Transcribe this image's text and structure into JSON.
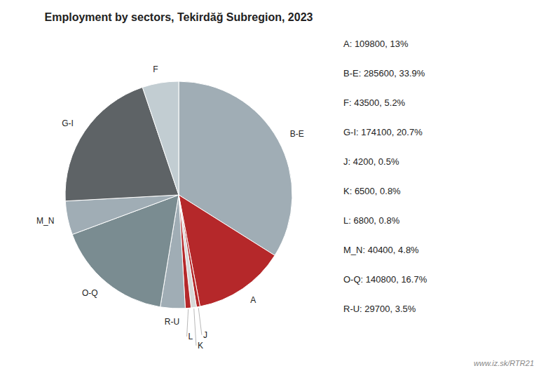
{
  "chart_data": {
    "type": "pie",
    "title": "Employment by sectors, Tekirdăğ Subregion, 2023",
    "categories": [
      "B-E",
      "A",
      "J",
      "K",
      "L",
      "R-U",
      "O-Q",
      "M_N",
      "G-I",
      "F"
    ],
    "values": [
      285600,
      109800,
      4200,
      6500,
      6800,
      29700,
      140800,
      40400,
      174100,
      43500
    ],
    "colors": [
      "#a0adb5",
      "#b5282a",
      "#b5282a",
      "#d8d8d8",
      "#b5282a",
      "#a0adb5",
      "#7a8c91",
      "#a0adb5",
      "#5e6366",
      "#c2cdd2"
    ],
    "annotations": [
      "A: 109800, 13%",
      "B-E: 285600, 33.9%",
      "F: 43500, 5.2%",
      "G-I: 174100, 20.7%",
      "J: 4200, 0.5%",
      "K: 6500, 0.8%",
      "L: 6800, 0.8%",
      "M_N: 40400, 4.8%",
      "O-Q: 140800, 16.7%",
      "R-U: 29700, 3.5%",
      "www.iz.sk/RTR21"
    ]
  }
}
